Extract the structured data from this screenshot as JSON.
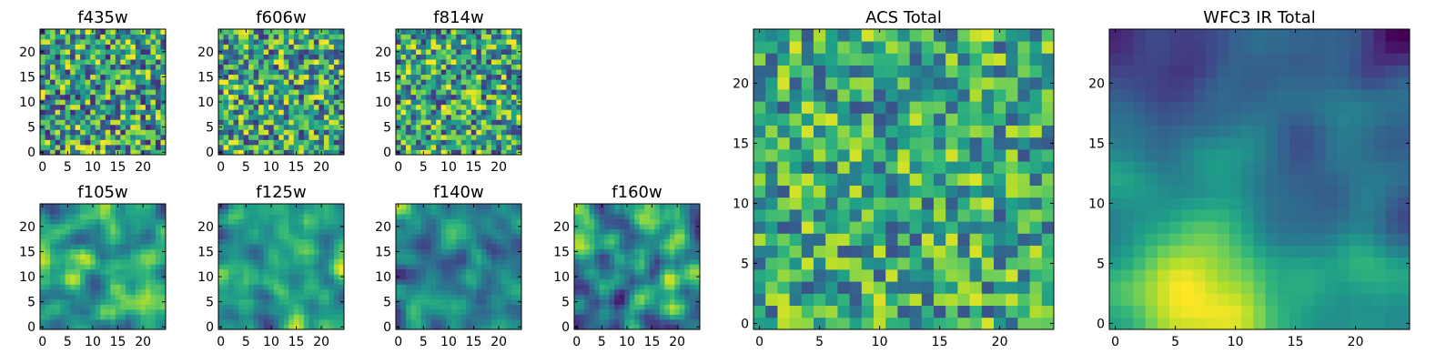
{
  "chart_data": [
    {
      "type": "heatmap",
      "title": "f435w",
      "n": 25,
      "xticks": [
        0,
        5,
        10,
        15,
        20
      ],
      "yticks": [
        0,
        5,
        10,
        15,
        20
      ],
      "texture": "noise",
      "seed": 11,
      "base": 0.55,
      "contrast": 0.9
    },
    {
      "type": "heatmap",
      "title": "f606w",
      "n": 25,
      "xticks": [
        0,
        5,
        10,
        15,
        20
      ],
      "yticks": [
        0,
        5,
        10,
        15,
        20
      ],
      "texture": "noise",
      "seed": 23,
      "base": 0.57,
      "contrast": 0.85
    },
    {
      "type": "heatmap",
      "title": "f814w",
      "n": 25,
      "xticks": [
        0,
        5,
        10,
        15,
        20
      ],
      "yticks": [
        0,
        5,
        10,
        15,
        20
      ],
      "texture": "noise",
      "seed": 37,
      "base": 0.58,
      "contrast": 0.85
    },
    {
      "type": "heatmap",
      "title": "f105w",
      "n": 25,
      "xticks": [
        0,
        5,
        10,
        15,
        20
      ],
      "yticks": [
        0,
        5,
        10,
        15,
        20
      ],
      "texture": "smooth",
      "seed": 41,
      "base": 0.55,
      "contrast": 0.75
    },
    {
      "type": "heatmap",
      "title": "f125w",
      "n": 25,
      "xticks": [
        0,
        5,
        10,
        15,
        20
      ],
      "yticks": [
        0,
        5,
        10,
        15,
        20
      ],
      "texture": "smooth",
      "seed": 53,
      "base": 0.58,
      "contrast": 0.8
    },
    {
      "type": "heatmap",
      "title": "f140w",
      "n": 25,
      "xticks": [
        0,
        5,
        10,
        15,
        20
      ],
      "yticks": [
        0,
        5,
        10,
        15,
        20
      ],
      "texture": "smooth",
      "seed": 67,
      "base": 0.53,
      "contrast": 0.8
    },
    {
      "type": "heatmap",
      "title": "f160w",
      "n": 25,
      "xticks": [
        0,
        5,
        10,
        15,
        20
      ],
      "yticks": [
        0,
        5,
        10,
        15,
        20
      ],
      "texture": "smooth",
      "seed": 79,
      "base": 0.5,
      "contrast": 0.85
    },
    {
      "type": "heatmap",
      "title": "ACS Total",
      "n": 25,
      "xticks": [
        0,
        5,
        10,
        15,
        20
      ],
      "yticks": [
        0,
        5,
        10,
        15,
        20
      ],
      "texture": "noise",
      "seed": 97,
      "base": 0.6,
      "contrast": 0.7
    },
    {
      "type": "heatmap",
      "title": "WFC3 IR Total",
      "n": 25,
      "xticks": [
        0,
        5,
        10,
        15,
        20
      ],
      "yticks": [
        0,
        5,
        10,
        15,
        20
      ],
      "texture": "gradient",
      "seed": 101,
      "base": 0.55,
      "contrast": 0.8
    }
  ]
}
